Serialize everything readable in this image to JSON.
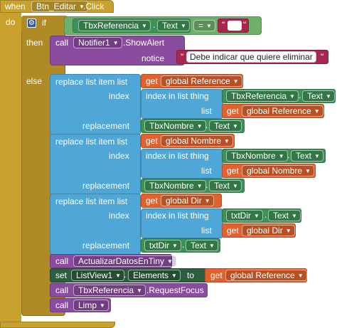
{
  "colors": {
    "event": "#c8a22c",
    "control": "#b08a24",
    "component": "#7a8b3a",
    "component_green": "#3f9257",
    "list": "#4ea7d6",
    "variable": "#e1622e",
    "procedure": "#8a4c9e",
    "text": "#a7274f",
    "logic": "#6fb06c",
    "setter": "#2d5f3e"
  },
  "event": {
    "when": "when",
    "component": "Btn_Editar",
    "event_name": ".Click",
    "do": "do"
  },
  "if_block": {
    "if": "if",
    "then": "then",
    "else": "else",
    "condition": {
      "component": "TbxReferencia",
      "property": "Text",
      "operator": "=",
      "empty_text": ""
    }
  },
  "then_call": {
    "call": "call",
    "component": "Notifier1",
    "method": ".ShowAlert",
    "notice": "notice",
    "message": "Debe indicar que quiere eliminar"
  },
  "replace_blocks": [
    {
      "title": "replace list item  list",
      "get": "get",
      "list_var": "global Reference",
      "index_label": "index",
      "index_in_list": "index in list  thing",
      "thing_component": "TbxReferencia",
      "thing_property": "Text",
      "list_label": "list",
      "list_var2": "global Reference",
      "replacement_label": "replacement",
      "repl_component": "TbxNombre",
      "repl_property": "Text"
    },
    {
      "title": "replace list item  list",
      "get": "get",
      "list_var": "global Nombre",
      "index_label": "index",
      "index_in_list": "index in list  thing",
      "thing_component": "TbxNombre",
      "thing_property": "Text",
      "list_label": "list",
      "list_var2": "global Nombre",
      "replacement_label": "replacement",
      "repl_component": "TbxNombre",
      "repl_property": "Text"
    },
    {
      "title": "replace list item  list",
      "get": "get",
      "list_var": "global Dir",
      "index_label": "index",
      "index_in_list": "index in list  thing",
      "thing_component": "txtDir",
      "thing_property": "Text",
      "list_label": "list",
      "list_var2": "global Dir",
      "replacement_label": "replacement",
      "repl_component": "txtDir",
      "repl_property": "Text"
    }
  ],
  "call_actualizar": {
    "call": "call",
    "procedure": "ActualizarDatosEnTiny"
  },
  "set_listview": {
    "set": "set",
    "component": "ListView1",
    "property": "Elements",
    "to": "to",
    "get": "get",
    "var": "global Reference"
  },
  "call_focus": {
    "call": "call",
    "component": "TbxReferencia",
    "method": ".RequestFocus"
  },
  "call_limp": {
    "call": "call",
    "procedure": "Limp"
  }
}
